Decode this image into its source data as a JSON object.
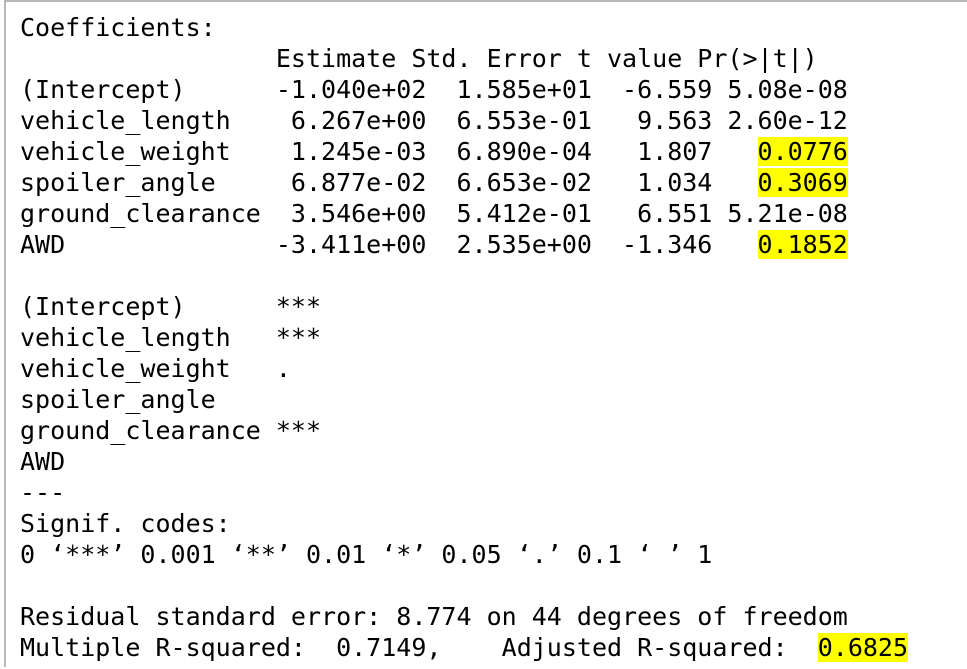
{
  "console": {
    "lines": [
      [
        {
          "t": "Coefficients:"
        }
      ],
      [
        {
          "t": "                 Estimate Std. Error t value Pr(>|t|)"
        }
      ],
      [
        {
          "t": "(Intercept)      -1.040e+02  1.585e+01  -6.559 5.08e-08"
        }
      ],
      [
        {
          "t": "vehicle_length    6.267e+00  6.553e-01   9.563 2.60e-12"
        }
      ],
      [
        {
          "t": "vehicle_weight    1.245e-03  6.890e-04   1.807   "
        },
        {
          "t": "0.0776",
          "hl": true
        }
      ],
      [
        {
          "t": "spoiler_angle     6.877e-02  6.653e-02   1.034   "
        },
        {
          "t": "0.3069",
          "hl": true
        }
      ],
      [
        {
          "t": "ground_clearance  3.546e+00  5.412e-01   6.551 5.21e-08"
        }
      ],
      [
        {
          "t": "AWD              -3.411e+00  2.535e+00  -1.346   "
        },
        {
          "t": "0.1852",
          "hl": true
        }
      ],
      [
        {
          "t": ""
        }
      ],
      [
        {
          "t": "(Intercept)      ***"
        }
      ],
      [
        {
          "t": "vehicle_length   ***"
        }
      ],
      [
        {
          "t": "vehicle_weight   ."
        }
      ],
      [
        {
          "t": "spoiler_angle"
        }
      ],
      [
        {
          "t": "ground_clearance ***"
        }
      ],
      [
        {
          "t": "AWD"
        }
      ],
      [
        {
          "t": "---"
        }
      ],
      [
        {
          "t": "Signif. codes:"
        }
      ],
      [
        {
          "t": "0 ‘***’ 0.001 ‘**’ 0.01 ‘*’ 0.05 ‘.’ 0.1 ‘ ’ 1"
        }
      ],
      [
        {
          "t": ""
        }
      ],
      [
        {
          "t": "Residual standard error: 8.774 on 44 degrees of freedom"
        }
      ],
      [
        {
          "t": "Multiple R-squared:  0.7149,    Adjusted R-squared:  "
        },
        {
          "t": "0.6825",
          "hl": true
        }
      ]
    ],
    "highlight_color": "#ffff00",
    "text_color": "#000000",
    "background_color": "#ffffff"
  }
}
